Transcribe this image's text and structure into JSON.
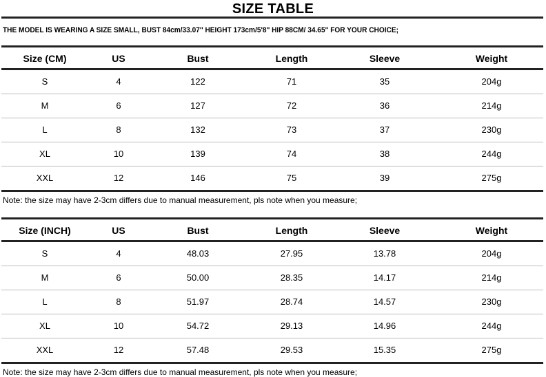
{
  "title": "SIZE TABLE",
  "model_info": "THE MODEL IS WEARING A SIZE SMALL, BUST 84cm/33.07''   HEIGHT 173cm/5'8'' HIP 88CM/ 34.65''  FOR YOUR CHOICE;",
  "tables": [
    {
      "headers": [
        "Size (CM)",
        "US",
        "Bust",
        "Length",
        "Sleeve",
        "Weight"
      ],
      "rows": [
        [
          "S",
          "4",
          "122",
          "71",
          "35",
          "204g"
        ],
        [
          "M",
          "6",
          "127",
          "72",
          "36",
          "214g"
        ],
        [
          "L",
          "8",
          "132",
          "73",
          "37",
          "230g"
        ],
        [
          "XL",
          "10",
          "139",
          "74",
          "38",
          "244g"
        ],
        [
          "XXL",
          "12",
          "146",
          "75",
          "39",
          "275g"
        ]
      ],
      "note": "Note: the size may have 2-3cm differs due to manual measurement, pls note when you measure;"
    },
    {
      "headers": [
        "Size (INCH)",
        "US",
        "Bust",
        "Length",
        "Sleeve",
        "Weight"
      ],
      "rows": [
        [
          "S",
          "4",
          "48.03",
          "27.95",
          "13.78",
          "204g"
        ],
        [
          "M",
          "6",
          "50.00",
          "28.35",
          "14.17",
          "214g"
        ],
        [
          "L",
          "8",
          "51.97",
          "28.74",
          "14.57",
          "230g"
        ],
        [
          "XL",
          "10",
          "54.72",
          "29.13",
          "14.96",
          "244g"
        ],
        [
          "XXL",
          "12",
          "57.48",
          "29.53",
          "15.35",
          "275g"
        ]
      ],
      "note": "Note: the size may have 2-3cm differs due to manual measurement, pls note when you measure;"
    }
  ]
}
